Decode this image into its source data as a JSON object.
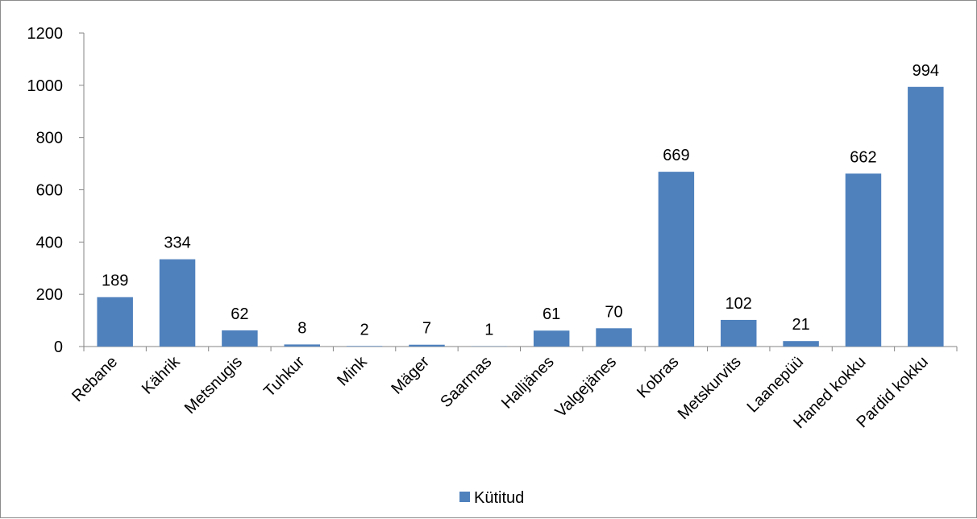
{
  "chart_data": {
    "type": "bar",
    "categories": [
      "Rebane",
      "Kährik",
      "Metsnugis",
      "Tuhkur",
      "Mink",
      "Mäger",
      "Saarmas",
      "Halljänes",
      "Valgejänes",
      "Kobras",
      "Metskurvits",
      "Laanepüü",
      "Haned kokku",
      "Pardid kokku"
    ],
    "series": [
      {
        "name": "Kütitud",
        "values": [
          189,
          334,
          62,
          8,
          2,
          7,
          1,
          61,
          70,
          669,
          102,
          21,
          662,
          994
        ],
        "color": "#4f81bd"
      }
    ],
    "title": "",
    "xlabel": "",
    "ylabel": "",
    "ylim": [
      0,
      1200
    ],
    "yticks": [
      0,
      200,
      400,
      600,
      800,
      1000,
      1200
    ],
    "grid": false,
    "data_labels": true,
    "legend": {
      "position": "bottom",
      "entries": [
        "Kütitud"
      ]
    },
    "axis_color": "#868686"
  }
}
